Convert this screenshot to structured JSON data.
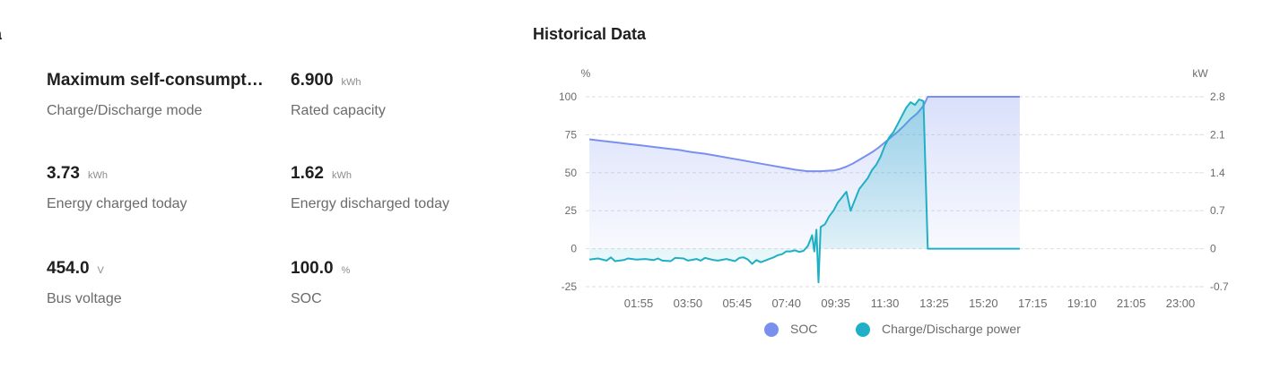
{
  "left_panel": {
    "title": "ta",
    "metrics": [
      {
        "value": "Maximum self-consumption",
        "unit": "",
        "label": "Charge/Discharge mode"
      },
      {
        "value": "6.900",
        "unit": "kWh",
        "label": "Rated capacity"
      },
      {
        "value": "3.73",
        "unit": "kWh",
        "label": "Energy charged today"
      },
      {
        "value": "1.62",
        "unit": "kWh",
        "label": "Energy discharged today"
      },
      {
        "value": "454.0",
        "unit": "V",
        "label": "Bus voltage"
      },
      {
        "value": "100.0",
        "unit": "%",
        "label": "SOC"
      }
    ]
  },
  "right_panel": {
    "title": "Historical Data"
  },
  "colors": {
    "soc": "#7990ee",
    "power": "#1fb0c6",
    "grid": "#dedede",
    "axis_text": "#6b6b6b"
  },
  "chart_data": {
    "type": "line",
    "xlabel": "",
    "x_ticks": [
      "01:55",
      "03:50",
      "05:45",
      "07:40",
      "09:35",
      "11:30",
      "13:25",
      "15:20",
      "17:15",
      "19:10",
      "21:05",
      "23:00"
    ],
    "y_left": {
      "unit": "%",
      "ticks": [
        "100",
        "75",
        "50",
        "25",
        "0",
        "-25"
      ],
      "range": [
        -25,
        100
      ]
    },
    "y_right": {
      "unit": "kW",
      "ticks": [
        "2.8",
        "2.1",
        "1.4",
        "0.7",
        "0",
        "-0.7"
      ],
      "range": [
        -0.7,
        2.8
      ]
    },
    "grid": true,
    "legend_position": "bottom-center",
    "series": [
      {
        "name": "SOC",
        "axis": "left",
        "area": true,
        "points": [
          [
            "00:00",
            72
          ],
          [
            "00:30",
            71
          ],
          [
            "01:00",
            70
          ],
          [
            "01:30",
            69
          ],
          [
            "02:00",
            68
          ],
          [
            "02:30",
            67
          ],
          [
            "03:00",
            66
          ],
          [
            "03:30",
            65
          ],
          [
            "04:00",
            63.5
          ],
          [
            "04:30",
            62.5
          ],
          [
            "05:00",
            61
          ],
          [
            "05:30",
            59.5
          ],
          [
            "06:00",
            58
          ],
          [
            "06:30",
            56.5
          ],
          [
            "07:00",
            55
          ],
          [
            "07:30",
            53.5
          ],
          [
            "08:00",
            52
          ],
          [
            "08:30",
            51
          ],
          [
            "09:00",
            51
          ],
          [
            "09:30",
            51.5
          ],
          [
            "09:45",
            52.5
          ],
          [
            "10:00",
            54
          ],
          [
            "10:15",
            56
          ],
          [
            "10:30",
            58.5
          ],
          [
            "10:45",
            61
          ],
          [
            "11:00",
            63.5
          ],
          [
            "11:15",
            66.5
          ],
          [
            "11:30",
            70
          ],
          [
            "11:45",
            73.5
          ],
          [
            "12:00",
            77
          ],
          [
            "12:15",
            81
          ],
          [
            "12:30",
            85.5
          ],
          [
            "12:45",
            89
          ],
          [
            "13:00",
            94
          ],
          [
            "13:10",
            100
          ],
          [
            "14:00",
            100
          ],
          [
            "15:00",
            100
          ],
          [
            "16:00",
            100
          ],
          [
            "16:45",
            100
          ]
        ]
      },
      {
        "name": "Charge/Discharge power",
        "axis": "right",
        "area": true,
        "points": [
          [
            "00:00",
            -0.2
          ],
          [
            "00:20",
            -0.18
          ],
          [
            "00:40",
            -0.22
          ],
          [
            "00:50",
            -0.16
          ],
          [
            "01:00",
            -0.23
          ],
          [
            "01:20",
            -0.21
          ],
          [
            "01:30",
            -0.18
          ],
          [
            "01:50",
            -0.2
          ],
          [
            "02:10",
            -0.19
          ],
          [
            "02:30",
            -0.21
          ],
          [
            "02:40",
            -0.18
          ],
          [
            "02:50",
            -0.22
          ],
          [
            "03:10",
            -0.23
          ],
          [
            "03:20",
            -0.17
          ],
          [
            "03:40",
            -0.18
          ],
          [
            "03:50",
            -0.22
          ],
          [
            "04:10",
            -0.19
          ],
          [
            "04:20",
            -0.22
          ],
          [
            "04:30",
            -0.17
          ],
          [
            "04:50",
            -0.21
          ],
          [
            "05:00",
            -0.22
          ],
          [
            "05:20",
            -0.19
          ],
          [
            "05:40",
            -0.23
          ],
          [
            "05:50",
            -0.17
          ],
          [
            "06:00",
            -0.16
          ],
          [
            "06:10",
            -0.2
          ],
          [
            "06:20",
            -0.28
          ],
          [
            "06:30",
            -0.21
          ],
          [
            "06:40",
            -0.25
          ],
          [
            "06:50",
            -0.22
          ],
          [
            "07:00",
            -0.19
          ],
          [
            "07:10",
            -0.16
          ],
          [
            "07:20",
            -0.12
          ],
          [
            "07:30",
            -0.1
          ],
          [
            "07:40",
            -0.05
          ],
          [
            "07:50",
            -0.05
          ],
          [
            "08:00",
            -0.03
          ],
          [
            "08:10",
            -0.06
          ],
          [
            "08:20",
            -0.04
          ],
          [
            "08:30",
            0.05
          ],
          [
            "08:40",
            0.25
          ],
          [
            "08:45",
            -0.05
          ],
          [
            "08:50",
            0.35
          ],
          [
            "08:55",
            -0.62
          ],
          [
            "09:00",
            0.4
          ],
          [
            "09:10",
            0.45
          ],
          [
            "09:20",
            0.6
          ],
          [
            "09:30",
            0.7
          ],
          [
            "09:40",
            0.85
          ],
          [
            "09:50",
            0.95
          ],
          [
            "10:00",
            1.05
          ],
          [
            "10:10",
            0.7
          ],
          [
            "10:20",
            0.9
          ],
          [
            "10:30",
            1.1
          ],
          [
            "10:40",
            1.2
          ],
          [
            "10:50",
            1.3
          ],
          [
            "11:00",
            1.45
          ],
          [
            "11:10",
            1.55
          ],
          [
            "11:20",
            1.7
          ],
          [
            "11:30",
            1.9
          ],
          [
            "11:40",
            2.05
          ],
          [
            "11:50",
            2.15
          ],
          [
            "12:00",
            2.3
          ],
          [
            "12:10",
            2.45
          ],
          [
            "12:20",
            2.6
          ],
          [
            "12:30",
            2.7
          ],
          [
            "12:40",
            2.65
          ],
          [
            "12:50",
            2.75
          ],
          [
            "13:00",
            2.72
          ],
          [
            "13:10",
            0
          ],
          [
            "14:00",
            0
          ],
          [
            "15:00",
            0
          ],
          [
            "16:00",
            0
          ],
          [
            "16:45",
            0
          ]
        ]
      }
    ]
  }
}
